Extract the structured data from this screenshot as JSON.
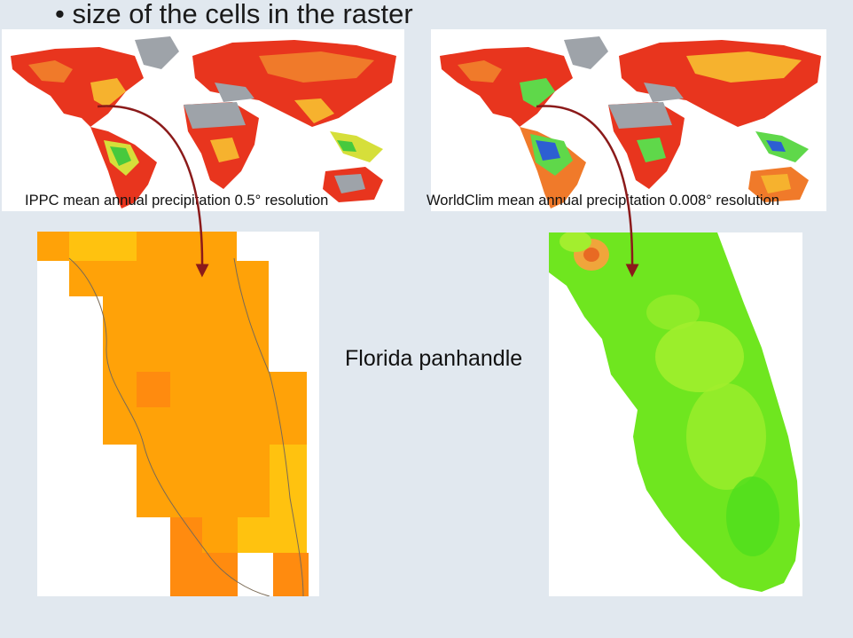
{
  "slide": {
    "bullet_text": "• size of the cells in the raster",
    "center_label": "Florida panhandle"
  },
  "maps": {
    "left": {
      "caption": "IPPC mean annual precipitation  0.5° resolution",
      "palette": [
        "#e8351e",
        "#f07a2a",
        "#f6b22e",
        "#d6df3a",
        "#47c93d",
        "#9ea3a9"
      ]
    },
    "right": {
      "caption": "WorldClim mean annual precipitation  0.008° resolution",
      "palette": [
        "#e8351e",
        "#f07a2a",
        "#f6b22e",
        "#5fd84a",
        "#2d5fd2",
        "#9ea3a9"
      ]
    }
  },
  "colors": {
    "background": "#e1e8ef",
    "arrow": "#8b1a1a",
    "coarse_cell_main": "#ffa208",
    "coarse_cell_dark": "#ff8b0f",
    "coarse_cell_light": "#ffc20f",
    "fine_green": "#6fe61f",
    "fine_light_green": "#a3ee2e",
    "fine_hotspot": "#f0a53b"
  }
}
